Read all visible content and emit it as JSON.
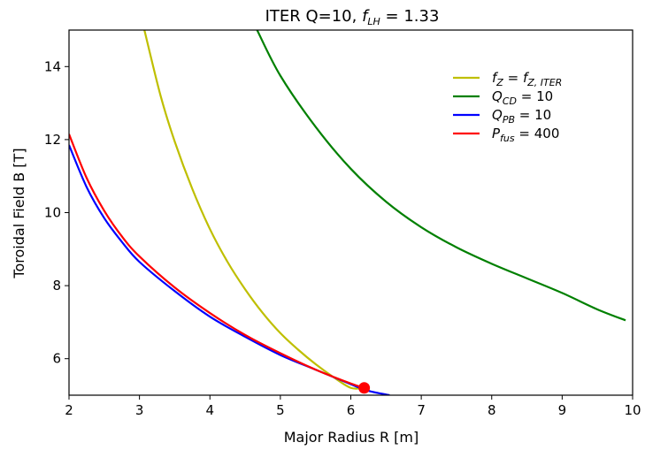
{
  "chart_data": {
    "type": "line",
    "title": "ITER Q=10, f_LH = 1.33",
    "title_parts": {
      "main": "ITER Q=10, ",
      "f": "f",
      "f_sub": "LH",
      "rest": " = 1.33"
    },
    "xlabel": "Major Radius R [m]",
    "ylabel": "Toroidal Field B [T]",
    "xlim": [
      2,
      10
    ],
    "ylim": [
      5,
      15
    ],
    "xticks": [
      "2",
      "3",
      "4",
      "5",
      "6",
      "7",
      "8",
      "9",
      "10"
    ],
    "yticks": [
      "6",
      "8",
      "10",
      "12",
      "14"
    ],
    "grid": false,
    "legend_position": "top-right",
    "series": [
      {
        "name": "f_Z = f_Z,ITER",
        "legend": {
          "a": "f",
          "a_sub": "Z",
          "mid": " = ",
          "b": "f",
          "b_sub": "Z, ITER",
          "rest": ""
        },
        "color": "#bfbf00",
        "x": [
          3.07,
          3.3,
          3.5,
          3.75,
          4.0,
          4.25,
          4.5,
          4.75,
          5.0,
          5.25,
          5.5,
          5.75,
          6.0,
          6.19
        ],
        "y": [
          15.0,
          13.2,
          11.95,
          10.65,
          9.55,
          8.65,
          7.9,
          7.25,
          6.7,
          6.25,
          5.85,
          5.5,
          5.2,
          5.2
        ]
      },
      {
        "name": "Q_CD = 10",
        "legend": {
          "a": "Q",
          "a_sub": "CD",
          "mid": " = ",
          "b": "",
          "b_sub": "",
          "rest": "10"
        },
        "color": "#008000",
        "x": [
          4.67,
          5.0,
          5.5,
          6.0,
          6.5,
          7.0,
          7.5,
          8.0,
          8.5,
          9.0,
          9.5,
          9.9
        ],
        "y": [
          15.0,
          13.75,
          12.35,
          11.2,
          10.3,
          9.6,
          9.05,
          8.6,
          8.2,
          7.8,
          7.35,
          7.05
        ]
      },
      {
        "name": "Q_PB = 10",
        "legend": {
          "a": "Q",
          "a_sub": "PB",
          "mid": " = ",
          "b": "",
          "b_sub": "",
          "rest": "10"
        },
        "color": "#0000ff",
        "x": [
          2.0,
          2.25,
          2.5,
          2.75,
          3.0,
          3.5,
          4.0,
          4.5,
          5.0,
          5.5,
          6.0,
          6.25,
          6.55
        ],
        "y": [
          11.85,
          10.7,
          9.85,
          9.2,
          8.65,
          7.85,
          7.15,
          6.6,
          6.1,
          5.7,
          5.3,
          5.12,
          5.0
        ]
      },
      {
        "name": "P_fus = 400",
        "legend": {
          "a": "P",
          "a_sub": "fus",
          "mid": " = ",
          "b": "",
          "b_sub": "",
          "rest": "400"
        },
        "color": "#ff0000",
        "x": [
          2.0,
          2.25,
          2.5,
          2.75,
          3.0,
          3.5,
          4.0,
          4.5,
          5.0,
          5.5,
          6.0,
          6.19
        ],
        "y": [
          12.15,
          10.95,
          10.05,
          9.35,
          8.8,
          7.95,
          7.25,
          6.65,
          6.15,
          5.7,
          5.32,
          5.2
        ]
      }
    ],
    "marker": {
      "x": 6.19,
      "y": 5.2,
      "color": "#ff0000"
    }
  }
}
